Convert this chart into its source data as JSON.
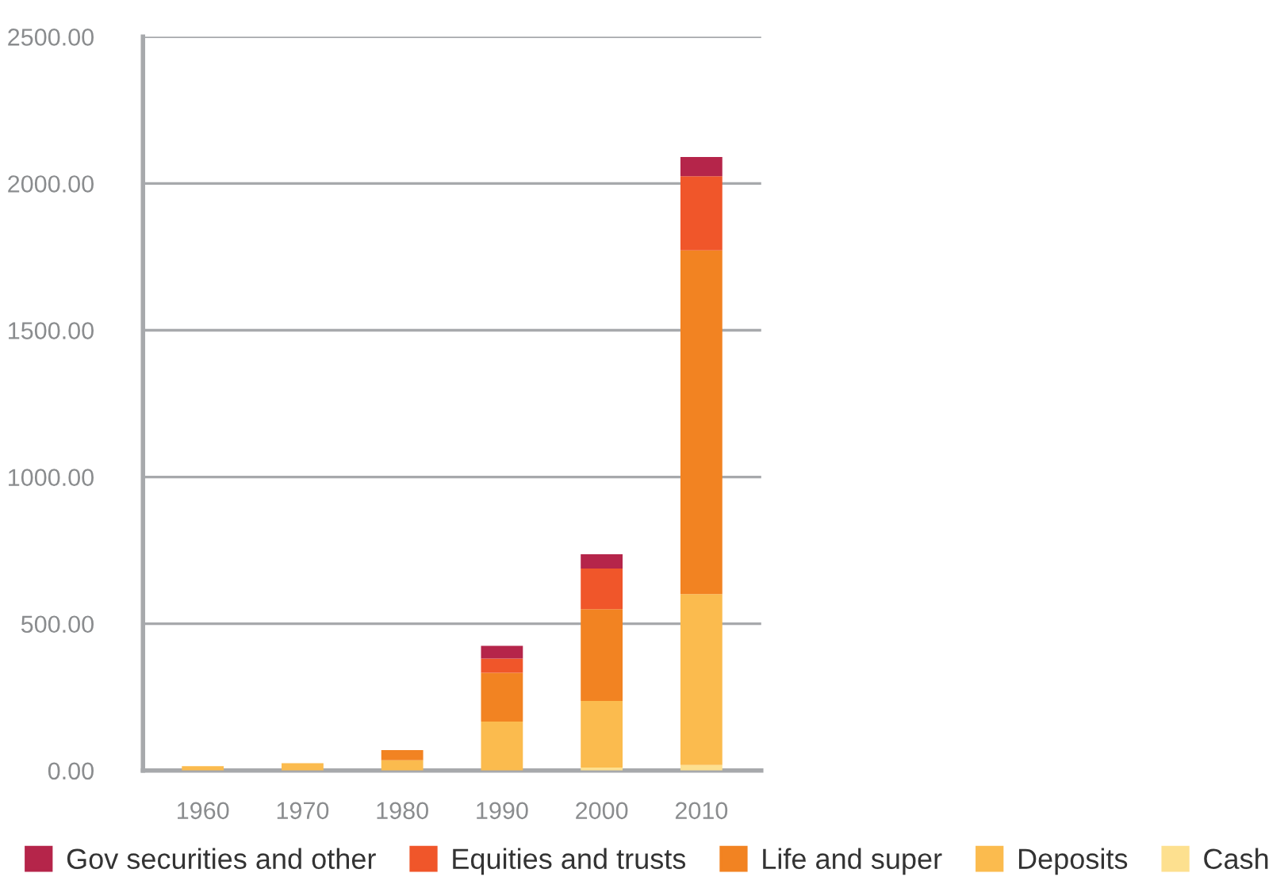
{
  "chart_data": {
    "type": "bar",
    "stacked": true,
    "categories": [
      "1960",
      "1970",
      "1980",
      "1990",
      "2000",
      "2010"
    ],
    "series": [
      {
        "name": "Cash",
        "color": "#fde08f",
        "values": [
          0,
          0,
          0,
          0,
          10,
          19
        ]
      },
      {
        "name": "Deposits",
        "color": "#fbbb4e",
        "values": [
          15,
          25,
          35,
          167,
          227,
          582
        ]
      },
      {
        "name": "Life and super",
        "color": "#f28322",
        "values": [
          0,
          0,
          35,
          166,
          313,
          1171
        ]
      },
      {
        "name": "Equities and trusts",
        "color": "#f0562a",
        "values": [
          0,
          0,
          0,
          49,
          138,
          253
        ]
      },
      {
        "name": "Gov securities and other",
        "color": "#b5254a",
        "values": [
          0,
          0,
          0,
          43,
          49,
          65
        ]
      }
    ],
    "ylim": [
      0,
      2500
    ],
    "yticks": [
      {
        "value": 0,
        "label": "0.00"
      },
      {
        "value": 500,
        "label": "500.00"
      },
      {
        "value": 1000,
        "label": "1000.00"
      },
      {
        "value": 1500,
        "label": "1500.00"
      },
      {
        "value": 2000,
        "label": "2000.00"
      },
      {
        "value": 2500,
        "label": "2500.00"
      }
    ],
    "grid": "y",
    "legend": "bottom"
  }
}
